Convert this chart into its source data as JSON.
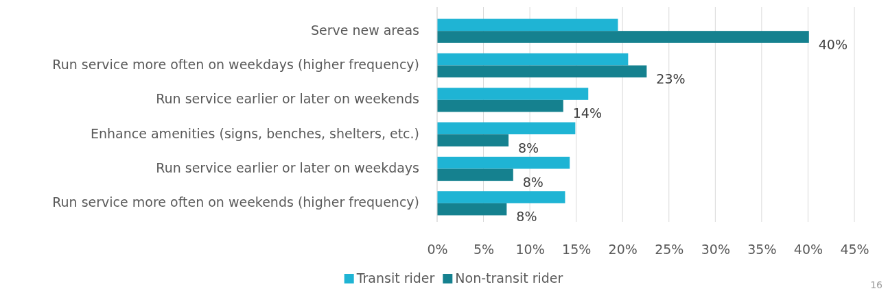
{
  "chart_data": {
    "type": "bar",
    "orientation": "horizontal",
    "categories": [
      "Serve new areas",
      "Run service more often on weekdays (higher frequency)",
      "Run service earlier or later on weekends",
      "Enhance amenities (signs, benches, shelters, etc.)",
      "Run service earlier or later on weekdays",
      "Run service more often on weekends (higher frequency)"
    ],
    "series": [
      {
        "name": "Transit rider",
        "color": "#1fb4d4",
        "values": [
          19.5,
          20.6,
          16.3,
          14.9,
          14.3,
          13.8
        ]
      },
      {
        "name": "Non-transit rider",
        "color": "#15818f",
        "values": [
          40.1,
          22.6,
          13.6,
          7.7,
          8.2,
          7.5
        ],
        "value_labels": [
          "40%",
          "23%",
          "14%",
          "8%",
          "8%",
          "8%"
        ]
      }
    ],
    "xlim": [
      0,
      45
    ],
    "xticks": [
      {
        "value": 0,
        "label": "0%"
      },
      {
        "value": 5,
        "label": "5%"
      },
      {
        "value": 10,
        "label": "10%"
      },
      {
        "value": 15,
        "label": "15%"
      },
      {
        "value": 20,
        "label": "20%"
      },
      {
        "value": 25,
        "label": "25%"
      },
      {
        "value": 30,
        "label": "30%"
      },
      {
        "value": 35,
        "label": "35%"
      },
      {
        "value": 40,
        "label": "40%"
      },
      {
        "value": 45,
        "label": "45%"
      }
    ],
    "grid": "x",
    "legend": "bottom",
    "annotations": [
      "16"
    ]
  }
}
